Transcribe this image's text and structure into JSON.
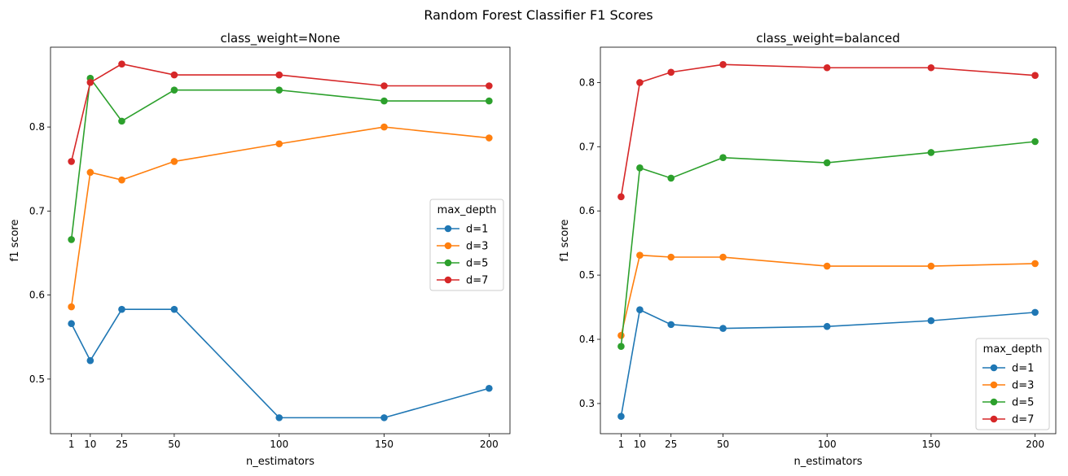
{
  "figure": {
    "suptitle": "Random Forest Classifier F1 Scores"
  },
  "chart_data": [
    {
      "type": "line",
      "title": "class_weight=None",
      "xlabel": "n_estimators",
      "ylabel": "f1 score",
      "x": [
        1,
        10,
        25,
        50,
        100,
        150,
        200
      ],
      "xticks": [
        1,
        10,
        25,
        50,
        100,
        150,
        200
      ],
      "xlim": [
        -8.95,
        209.95
      ],
      "ylim": [
        0.435,
        0.895
      ],
      "yticks": [
        0.5,
        0.6,
        0.7,
        0.8
      ],
      "ytick_labels": [
        "0.5",
        "0.6",
        "0.7",
        "0.8"
      ],
      "grid": false,
      "legend": {
        "title": "max_depth",
        "placement": "center-right"
      },
      "series": [
        {
          "name": "d=1",
          "color": "#1f77b4",
          "values": [
            0.566,
            0.522,
            0.583,
            0.583,
            0.454,
            0.454,
            0.489
          ]
        },
        {
          "name": "d=3",
          "color": "#ff7f0e",
          "values": [
            0.586,
            0.746,
            0.737,
            0.759,
            0.78,
            0.8,
            0.787
          ]
        },
        {
          "name": "d=5",
          "color": "#2ca02c",
          "values": [
            0.666,
            0.858,
            0.807,
            0.844,
            0.844,
            0.831,
            0.831
          ]
        },
        {
          "name": "d=7",
          "color": "#d62728",
          "values": [
            0.759,
            0.853,
            0.875,
            0.862,
            0.862,
            0.849,
            0.849
          ]
        }
      ]
    },
    {
      "type": "line",
      "title": "class_weight=balanced",
      "xlabel": "n_estimators",
      "ylabel": "f1 score",
      "x": [
        1,
        10,
        25,
        50,
        100,
        150,
        200
      ],
      "xticks": [
        1,
        10,
        25,
        50,
        100,
        150,
        200
      ],
      "xlim": [
        -8.95,
        209.95
      ],
      "ylim": [
        0.253,
        0.855
      ],
      "yticks": [
        0.3,
        0.4,
        0.5,
        0.6,
        0.7,
        0.8
      ],
      "ytick_labels": [
        "0.3",
        "0.4",
        "0.5",
        "0.6",
        "0.7",
        "0.8"
      ],
      "grid": false,
      "legend": {
        "title": "max_depth",
        "placement": "lower-right"
      },
      "series": [
        {
          "name": "d=1",
          "color": "#1f77b4",
          "values": [
            0.28,
            0.446,
            0.423,
            0.417,
            0.42,
            0.429,
            0.442
          ]
        },
        {
          "name": "d=3",
          "color": "#ff7f0e",
          "values": [
            0.406,
            0.531,
            0.528,
            0.528,
            0.514,
            0.514,
            0.518
          ]
        },
        {
          "name": "d=5",
          "color": "#2ca02c",
          "values": [
            0.389,
            0.667,
            0.651,
            0.683,
            0.675,
            0.691,
            0.708
          ]
        },
        {
          "name": "d=7",
          "color": "#d62728",
          "values": [
            0.622,
            0.8,
            0.816,
            0.828,
            0.823,
            0.823,
            0.811
          ]
        }
      ]
    }
  ]
}
